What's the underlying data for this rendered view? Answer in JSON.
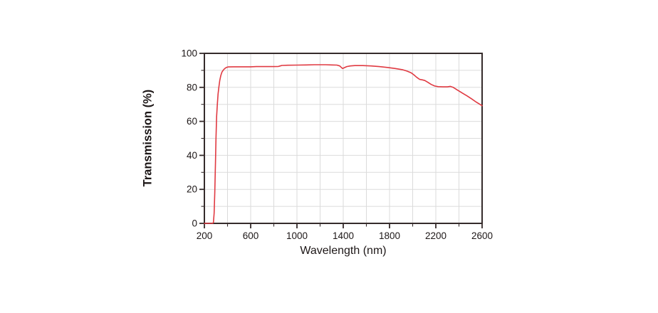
{
  "figure": {
    "background_color": "#ffffff"
  },
  "chart_data": {
    "type": "line",
    "title": "",
    "xlabel": "Wavelength (nm)",
    "ylabel": "Transmission (%)",
    "xlim": [
      200,
      2600
    ],
    "ylim": [
      0,
      100
    ],
    "x_major_ticks": [
      200,
      600,
      1000,
      1400,
      1800,
      2200,
      2600
    ],
    "x_minor_step": 200,
    "y_major_ticks": [
      0,
      20,
      40,
      60,
      80,
      100
    ],
    "y_minor_step": 10,
    "grid": "on (light gray lines at every minor tick: 200 nm and 10 %)",
    "legend": "none",
    "colors": {
      "curve": "#e03a42",
      "grid": "#dbdbdb",
      "frame": "#352b2b",
      "text": "#1d1717"
    },
    "series": [
      {
        "name": "transmission",
        "color": "#e03a42",
        "points": [
          [
            200,
            0
          ],
          [
            240,
            0
          ],
          [
            258,
            0
          ],
          [
            270,
            0
          ],
          [
            278,
            0.5
          ],
          [
            284,
            6
          ],
          [
            290,
            18
          ],
          [
            296,
            36
          ],
          [
            300,
            50
          ],
          [
            306,
            63
          ],
          [
            312,
            70
          ],
          [
            318,
            76
          ],
          [
            325,
            80
          ],
          [
            333,
            84
          ],
          [
            342,
            87
          ],
          [
            352,
            89
          ],
          [
            362,
            90
          ],
          [
            375,
            91
          ],
          [
            390,
            91.7
          ],
          [
            405,
            92
          ],
          [
            450,
            92.1
          ],
          [
            500,
            92.1
          ],
          [
            550,
            92.1
          ],
          [
            600,
            92.1
          ],
          [
            650,
            92.2
          ],
          [
            700,
            92.2
          ],
          [
            750,
            92.2
          ],
          [
            800,
            92.2
          ],
          [
            840,
            92.3
          ],
          [
            855,
            92.6
          ],
          [
            870,
            92.9
          ],
          [
            920,
            93.0
          ],
          [
            1000,
            93.1
          ],
          [
            1080,
            93.2
          ],
          [
            1150,
            93.3
          ],
          [
            1250,
            93.3
          ],
          [
            1300,
            93.2
          ],
          [
            1345,
            93.1
          ],
          [
            1370,
            92.6
          ],
          [
            1385,
            91.6
          ],
          [
            1395,
            91.1
          ],
          [
            1410,
            91.6
          ],
          [
            1430,
            92.2
          ],
          [
            1460,
            92.6
          ],
          [
            1500,
            92.8
          ],
          [
            1570,
            92.8
          ],
          [
            1640,
            92.6
          ],
          [
            1710,
            92.2
          ],
          [
            1780,
            91.7
          ],
          [
            1850,
            91.1
          ],
          [
            1910,
            90.4
          ],
          [
            1950,
            89.6
          ],
          [
            1985,
            88.6
          ],
          [
            2010,
            87.4
          ],
          [
            2035,
            85.9
          ],
          [
            2060,
            84.7
          ],
          [
            2085,
            84.4
          ],
          [
            2105,
            84.0
          ],
          [
            2130,
            83.0
          ],
          [
            2160,
            81.7
          ],
          [
            2190,
            80.8
          ],
          [
            2220,
            80.4
          ],
          [
            2260,
            80.3
          ],
          [
            2300,
            80.3
          ],
          [
            2325,
            80.6
          ],
          [
            2350,
            80.0
          ],
          [
            2390,
            78.3
          ],
          [
            2430,
            76.6
          ],
          [
            2470,
            75.0
          ],
          [
            2510,
            73.2
          ],
          [
            2550,
            71.3
          ],
          [
            2600,
            69.2
          ]
        ]
      }
    ]
  }
}
